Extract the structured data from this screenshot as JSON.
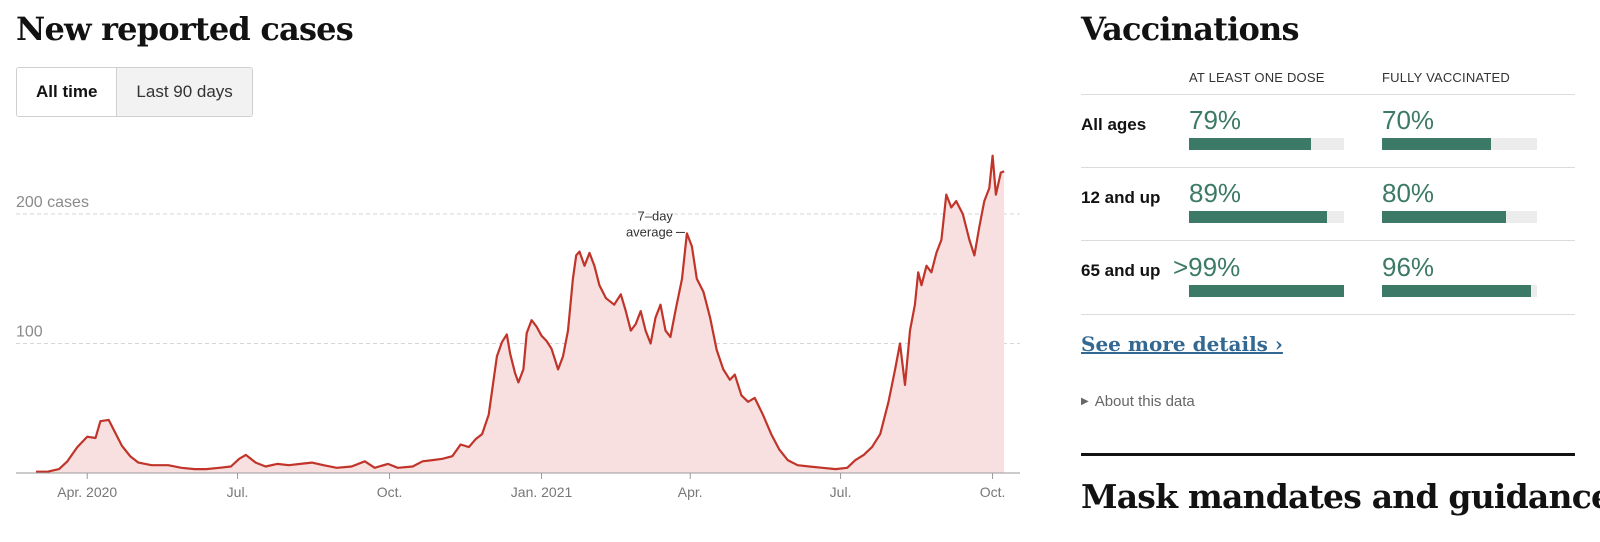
{
  "cases": {
    "title": "New reported cases",
    "toggle": [
      "All time",
      "Last 90 days"
    ],
    "annotation": [
      "7–day",
      "average"
    ]
  },
  "chart_data": {
    "type": "area",
    "title": "New reported cases",
    "series_name": "7-day average",
    "y_tick_labels": [
      "200 cases",
      "100"
    ],
    "y_ticks": [
      200,
      100
    ],
    "ylim": [
      0,
      245
    ],
    "xlim": [
      "2020-03-01",
      "2021-10-17"
    ],
    "x_tick_labels": [
      "Apr. 2020",
      "Jul.",
      "Oct.",
      "Jan. 2021",
      "Apr.",
      "Jul.",
      "Oct."
    ],
    "x_ticks": [
      "2020-04-01",
      "2020-07-01",
      "2020-10-01",
      "2021-01-01",
      "2021-04-01",
      "2021-07-01",
      "2021-10-01"
    ],
    "grid": "dashed horizontal",
    "colors": {
      "line": "#c0342a",
      "area": "#f7e0df",
      "grid": "#d6d6d6",
      "axis_text": "#777777"
    },
    "points": [
      [
        "2020-03-01",
        1
      ],
      [
        "2020-03-08",
        1
      ],
      [
        "2020-03-15",
        3
      ],
      [
        "2020-03-20",
        9
      ],
      [
        "2020-03-26",
        20
      ],
      [
        "2020-04-01",
        28
      ],
      [
        "2020-04-06",
        27
      ],
      [
        "2020-04-09",
        40
      ],
      [
        "2020-04-14",
        41
      ],
      [
        "2020-04-18",
        31
      ],
      [
        "2020-04-22",
        21
      ],
      [
        "2020-04-27",
        13
      ],
      [
        "2020-05-02",
        8
      ],
      [
        "2020-05-10",
        6
      ],
      [
        "2020-05-20",
        6
      ],
      [
        "2020-05-28",
        4
      ],
      [
        "2020-06-05",
        3
      ],
      [
        "2020-06-12",
        3
      ],
      [
        "2020-06-20",
        4
      ],
      [
        "2020-06-27",
        5
      ],
      [
        "2020-07-02",
        11
      ],
      [
        "2020-07-06",
        14
      ],
      [
        "2020-07-12",
        8
      ],
      [
        "2020-07-18",
        5
      ],
      [
        "2020-07-25",
        7
      ],
      [
        "2020-08-01",
        6
      ],
      [
        "2020-08-08",
        7
      ],
      [
        "2020-08-15",
        8
      ],
      [
        "2020-08-22",
        6
      ],
      [
        "2020-08-30",
        4
      ],
      [
        "2020-09-08",
        5
      ],
      [
        "2020-09-16",
        9
      ],
      [
        "2020-09-22",
        4
      ],
      [
        "2020-09-30",
        7
      ],
      [
        "2020-10-06",
        4
      ],
      [
        "2020-10-15",
        5
      ],
      [
        "2020-10-21",
        9
      ],
      [
        "2020-10-27",
        10
      ],
      [
        "2020-11-02",
        11
      ],
      [
        "2020-11-08",
        13
      ],
      [
        "2020-11-13",
        22
      ],
      [
        "2020-11-18",
        20
      ],
      [
        "2020-11-22",
        26
      ],
      [
        "2020-11-26",
        30
      ],
      [
        "2020-11-30",
        45
      ],
      [
        "2020-12-05",
        90
      ],
      [
        "2020-12-08",
        101
      ],
      [
        "2020-12-11",
        107
      ],
      [
        "2020-12-13",
        92
      ],
      [
        "2020-12-16",
        77
      ],
      [
        "2020-12-18",
        70
      ],
      [
        "2020-12-21",
        80
      ],
      [
        "2020-12-23",
        108
      ],
      [
        "2020-12-26",
        118
      ],
      [
        "2020-12-29",
        113
      ],
      [
        "2021-01-01",
        106
      ],
      [
        "2021-01-04",
        102
      ],
      [
        "2021-01-07",
        96
      ],
      [
        "2021-01-09",
        88
      ],
      [
        "2021-01-11",
        80
      ],
      [
        "2021-01-14",
        90
      ],
      [
        "2021-01-17",
        110
      ],
      [
        "2021-01-20",
        150
      ],
      [
        "2021-01-22",
        168
      ],
      [
        "2021-01-24",
        171
      ],
      [
        "2021-01-27",
        160
      ],
      [
        "2021-01-30",
        170
      ],
      [
        "2021-02-02",
        160
      ],
      [
        "2021-02-05",
        145
      ],
      [
        "2021-02-09",
        135
      ],
      [
        "2021-02-14",
        130
      ],
      [
        "2021-02-18",
        138
      ],
      [
        "2021-02-21",
        125
      ],
      [
        "2021-02-24",
        110
      ],
      [
        "2021-02-27",
        115
      ],
      [
        "2021-03-02",
        125
      ],
      [
        "2021-03-05",
        110
      ],
      [
        "2021-03-08",
        100
      ],
      [
        "2021-03-11",
        120
      ],
      [
        "2021-03-14",
        130
      ],
      [
        "2021-03-17",
        110
      ],
      [
        "2021-03-20",
        105
      ],
      [
        "2021-03-23",
        125
      ],
      [
        "2021-03-27",
        150
      ],
      [
        "2021-03-30",
        185
      ],
      [
        "2021-04-02",
        175
      ],
      [
        "2021-04-05",
        150
      ],
      [
        "2021-04-09",
        140
      ],
      [
        "2021-04-13",
        120
      ],
      [
        "2021-04-17",
        95
      ],
      [
        "2021-04-21",
        80
      ],
      [
        "2021-04-25",
        72
      ],
      [
        "2021-04-28",
        76
      ],
      [
        "2021-05-02",
        60
      ],
      [
        "2021-05-06",
        55
      ],
      [
        "2021-05-10",
        58
      ],
      [
        "2021-05-15",
        45
      ],
      [
        "2021-05-20",
        30
      ],
      [
        "2021-05-25",
        18
      ],
      [
        "2021-05-30",
        10
      ],
      [
        "2021-06-05",
        6
      ],
      [
        "2021-06-12",
        5
      ],
      [
        "2021-06-20",
        4
      ],
      [
        "2021-06-28",
        3
      ],
      [
        "2021-07-05",
        4
      ],
      [
        "2021-07-10",
        10
      ],
      [
        "2021-07-15",
        14
      ],
      [
        "2021-07-20",
        20
      ],
      [
        "2021-07-25",
        30
      ],
      [
        "2021-07-30",
        55
      ],
      [
        "2021-08-03",
        80
      ],
      [
        "2021-08-06",
        100
      ],
      [
        "2021-08-09",
        68
      ],
      [
        "2021-08-12",
        110
      ],
      [
        "2021-08-15",
        130
      ],
      [
        "2021-08-17",
        155
      ],
      [
        "2021-08-19",
        145
      ],
      [
        "2021-08-22",
        160
      ],
      [
        "2021-08-25",
        155
      ],
      [
        "2021-08-28",
        170
      ],
      [
        "2021-08-31",
        180
      ],
      [
        "2021-09-03",
        215
      ],
      [
        "2021-09-06",
        205
      ],
      [
        "2021-09-09",
        210
      ],
      [
        "2021-09-13",
        200
      ],
      [
        "2021-09-17",
        180
      ],
      [
        "2021-09-20",
        168
      ],
      [
        "2021-09-23",
        190
      ],
      [
        "2021-09-26",
        210
      ],
      [
        "2021-09-29",
        220
      ],
      [
        "2021-10-01",
        245
      ],
      [
        "2021-10-03",
        215
      ],
      [
        "2021-10-06",
        232
      ],
      [
        "2021-10-08",
        233
      ]
    ]
  },
  "vaccinations": {
    "title": "Vaccinations",
    "col1": "AT LEAST ONE DOSE",
    "col2": "FULLY VACCINATED",
    "rows": [
      {
        "label": "All ages",
        "one_dose": "79%",
        "one_dose_frac": 0.79,
        "full": "70%",
        "full_frac": 0.7
      },
      {
        "label": "12 and up",
        "one_dose": "89%",
        "one_dose_frac": 0.89,
        "full": "80%",
        "full_frac": 0.8
      },
      {
        "label": "65 and up",
        "one_dose": ">99%",
        "one_dose_frac": 1.0,
        "full": "96%",
        "full_frac": 0.96
      }
    ],
    "more_link": "See more details ›",
    "about": "About this data"
  },
  "mask": {
    "title": "Mask mandates and guidance"
  }
}
